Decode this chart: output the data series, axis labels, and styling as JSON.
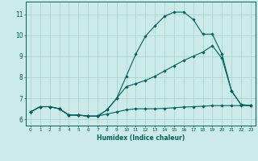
{
  "bg_color": "#cceae7",
  "grid_color": "#aad4d0",
  "line_color": "#005f5f",
  "xlabel": "Humidex (Indice chaleur)",
  "xlim": [
    -0.5,
    23.5
  ],
  "ylim": [
    5.7,
    11.6
  ],
  "yticks": [
    6,
    7,
    8,
    9,
    10,
    11
  ],
  "xticks": [
    0,
    1,
    2,
    3,
    4,
    5,
    6,
    7,
    8,
    9,
    10,
    11,
    12,
    13,
    14,
    15,
    16,
    17,
    18,
    19,
    20,
    21,
    22,
    23
  ],
  "line1_x": [
    0,
    1,
    2,
    3,
    4,
    5,
    6,
    7,
    8,
    9,
    10,
    11,
    12,
    13,
    14,
    15,
    16,
    17,
    18,
    19,
    20,
    21,
    22,
    23
  ],
  "line1_y": [
    6.35,
    6.6,
    6.6,
    6.5,
    6.2,
    6.2,
    6.15,
    6.15,
    6.25,
    6.35,
    6.45,
    6.5,
    6.5,
    6.5,
    6.52,
    6.55,
    6.58,
    6.6,
    6.62,
    6.65,
    6.65,
    6.65,
    6.65,
    6.65
  ],
  "line2_x": [
    0,
    1,
    2,
    3,
    4,
    5,
    6,
    7,
    8,
    9,
    10,
    11,
    12,
    13,
    14,
    15,
    16,
    17,
    18,
    19,
    20,
    21,
    22,
    23
  ],
  "line2_y": [
    6.35,
    6.6,
    6.6,
    6.5,
    6.2,
    6.2,
    6.15,
    6.15,
    6.45,
    7.0,
    7.55,
    7.7,
    7.85,
    8.05,
    8.3,
    8.55,
    8.8,
    9.0,
    9.2,
    9.5,
    8.9,
    7.35,
    6.7,
    6.65
  ],
  "line3_x": [
    0,
    1,
    2,
    3,
    4,
    5,
    6,
    7,
    8,
    9,
    10,
    11,
    12,
    13,
    14,
    15,
    16,
    17,
    18,
    19,
    20,
    21,
    22,
    23
  ],
  "line3_y": [
    6.35,
    6.6,
    6.6,
    6.5,
    6.2,
    6.2,
    6.15,
    6.15,
    6.45,
    7.0,
    8.05,
    9.1,
    9.95,
    10.45,
    10.9,
    11.1,
    11.1,
    10.75,
    10.05,
    10.05,
    9.1,
    7.35,
    6.7,
    6.65
  ]
}
